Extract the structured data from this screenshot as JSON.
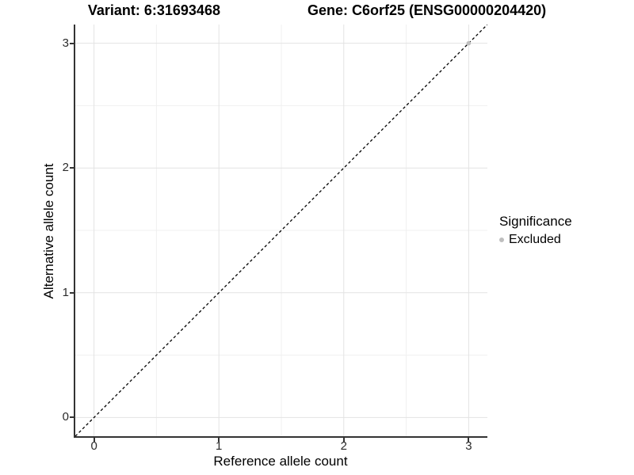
{
  "chart_data": {
    "type": "scatter",
    "title_left": "Variant: 6:31693468",
    "title_right": "Gene: C6orf25 (ENSG00000204420)",
    "xlabel": "Reference allele count",
    "ylabel": "Alternative allele count",
    "xlim": [
      -0.15,
      3.15
    ],
    "ylim": [
      -0.15,
      3.15
    ],
    "x_ticks": [
      0,
      1,
      2,
      3
    ],
    "y_ticks": [
      0,
      1,
      2,
      3
    ],
    "x_minor_ticks": [
      0.5,
      1.5,
      2.5
    ],
    "y_minor_ticks": [
      0.5,
      1.5,
      2.5
    ],
    "grid": true,
    "reference_line": {
      "type": "abline",
      "slope": 1,
      "intercept": 0,
      "style": "dashed"
    },
    "series": [
      {
        "name": "Excluded",
        "points": [
          {
            "x": 3,
            "y": 3
          }
        ]
      }
    ],
    "legend": {
      "title": "Significance",
      "position": "right",
      "entries": [
        {
          "label": "Excluded"
        }
      ]
    }
  },
  "colors": {
    "grid_major": "#e3e3e3",
    "grid_minor": "#f0f0f0",
    "axis_line": "#333333",
    "reference_line": "#000000",
    "excluded_point": "#bebebe",
    "text": "#000000"
  }
}
